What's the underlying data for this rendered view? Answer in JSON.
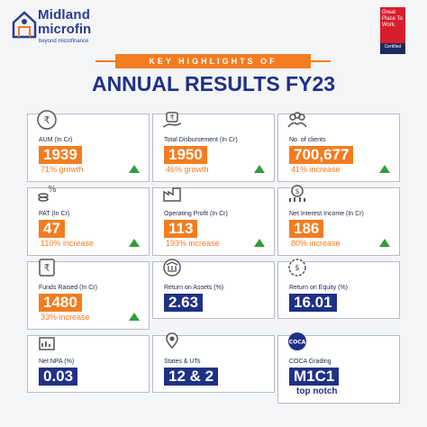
{
  "brand": {
    "line1": "Midland",
    "line2": "microfin",
    "tagline": "beyond microfinance"
  },
  "gptw": {
    "text": "Great Place To Work.",
    "badge": "Certified"
  },
  "header": {
    "kicker": "KEY HIGHLIGHTS OF",
    "title": "ANNUAL RESULTS FY23"
  },
  "cards": [
    {
      "label": "AUM (In Cr)",
      "value": "1939",
      "sub": "71% growth",
      "icon": "rupee-coin-icon"
    },
    {
      "label": "Total Disbursement (In Cr)",
      "value": "1950",
      "sub": "46% growth",
      "icon": "hand-money-icon"
    },
    {
      "label": "No. of clients",
      "value": "700,677",
      "sub": "41%  increase",
      "icon": "people-group-icon"
    },
    {
      "label": "PAT (In Cr)",
      "value": "47",
      "sub": "110% increase",
      "icon": "coins-percent-icon"
    },
    {
      "label": "Operating Profit (In Cr)",
      "value": "113",
      "sub": "193% increase",
      "icon": "factory-chart-icon"
    },
    {
      "label": "Net Interest Income (In Cr)",
      "value": "186",
      "sub": "80% increase",
      "icon": "money-growth-icon"
    },
    {
      "label": "Funds Raised (In Cr)",
      "value": "1480",
      "sub": "33% increase",
      "icon": "rupee-stack-icon"
    },
    {
      "label": "Return on Assets (%)",
      "value": "2.63",
      "icon": "bank-return-icon"
    },
    {
      "label": "Return on Equity (%)",
      "value": "16.01",
      "icon": "equity-gear-icon"
    },
    {
      "label": "Net NPA (%)",
      "value": "0.03",
      "icon": "npa-chart-icon"
    },
    {
      "label": "States & UTs",
      "value": "12 & 2",
      "icon": "map-pin-icon"
    },
    {
      "label": "COCA Grading",
      "value": "M1C1",
      "sub": "top notch",
      "icon": "coca-badge-icon"
    }
  ],
  "colors": {
    "accent": "#f47c20",
    "brand": "#1f3185",
    "up": "#2e9e3a"
  }
}
